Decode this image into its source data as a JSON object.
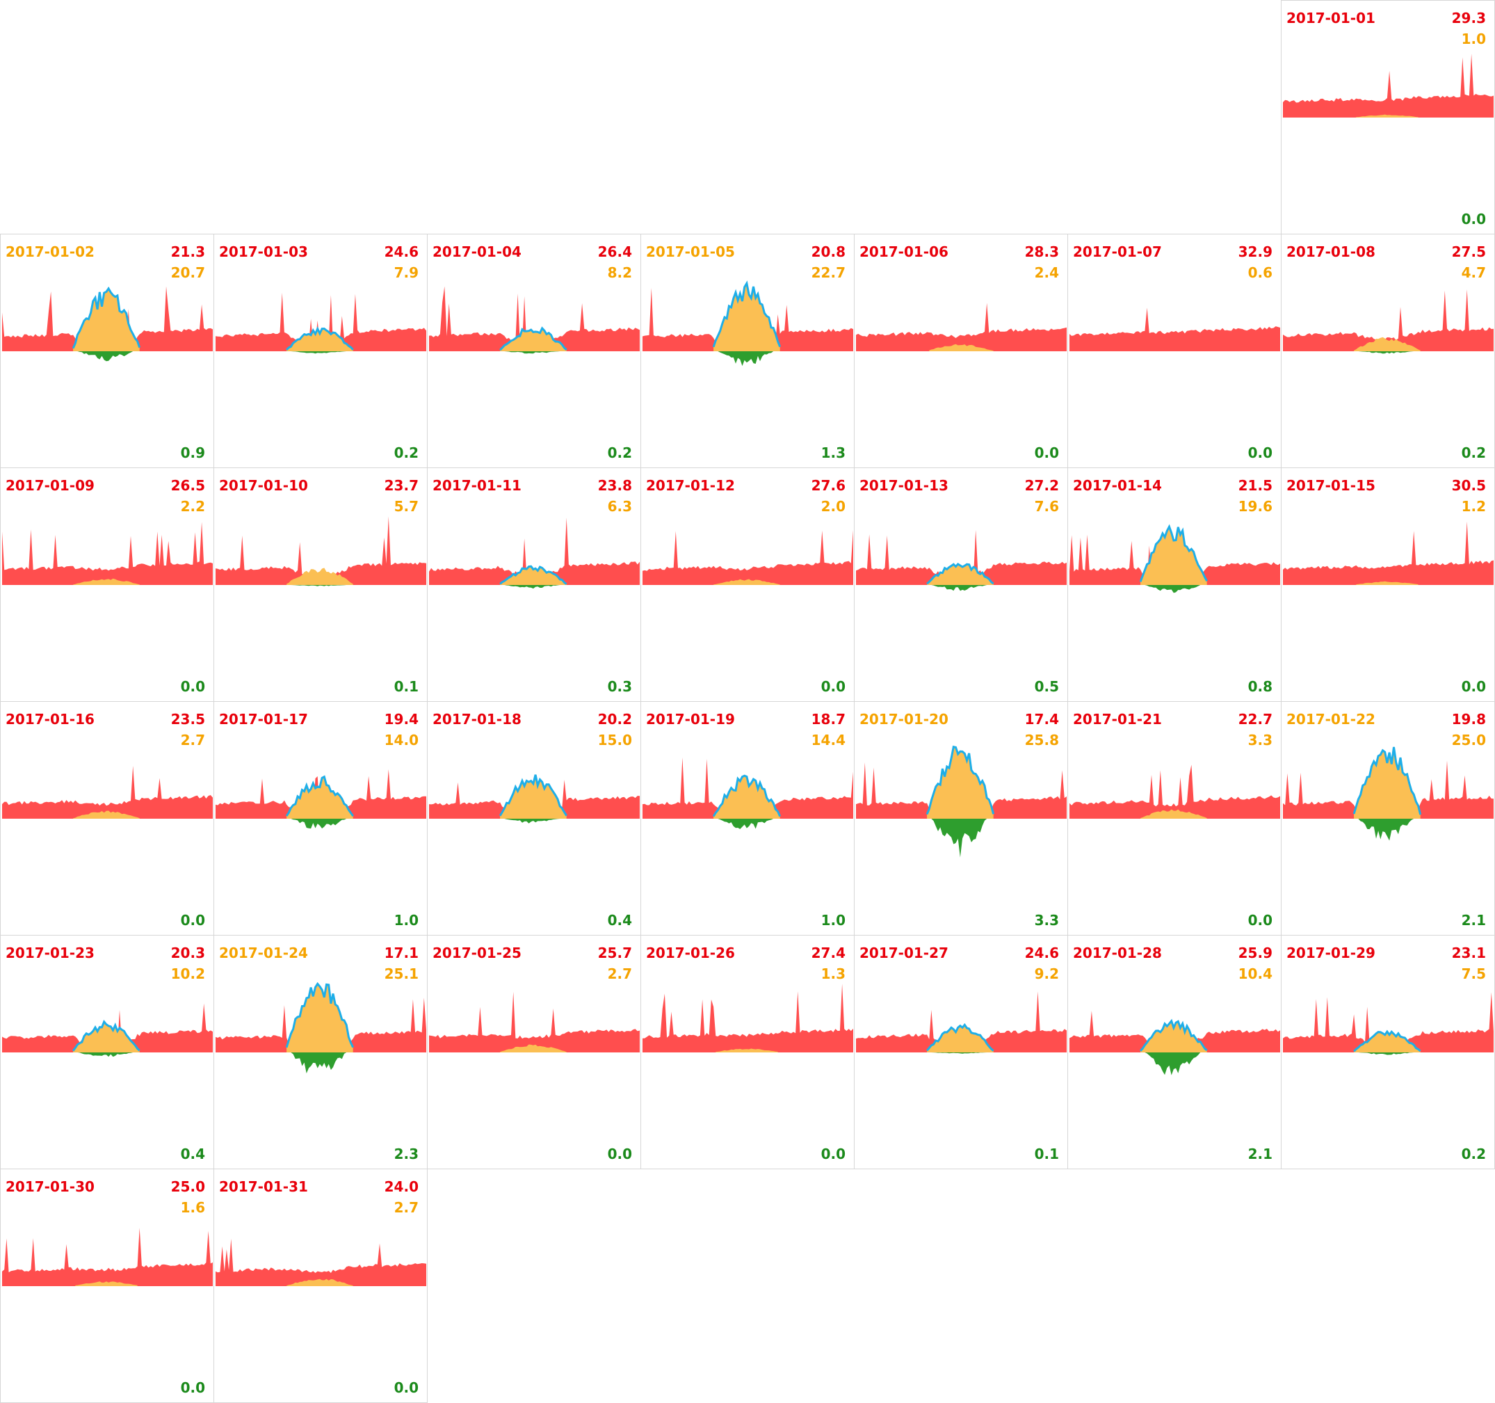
{
  "colors": {
    "grid": "#ff4e4e",
    "grid_text": "#e8000b",
    "solar": "#fbbf53",
    "solar_text": "#f5a300",
    "solar_peak": "#1eaee8",
    "export": "#2e9e2e",
    "export_text": "#1b8a1b",
    "border": "#d6d6d6"
  },
  "chart_data": {
    "type": "area",
    "layout": "calendar-small-multiples",
    "month": "2017-01",
    "first_weekday_column": 7,
    "series": [
      {
        "name": "grid",
        "color": "#ff4e4e"
      },
      {
        "name": "solar",
        "color": "#fbbf53"
      },
      {
        "name": "export",
        "color": "#2e9e2e"
      }
    ],
    "days": [
      {
        "date": "2017-01-01",
        "grid": "29.3",
        "solar": "1.0",
        "export": "0.0",
        "solar_dominant": false
      },
      {
        "date": "2017-01-02",
        "grid": "21.3",
        "solar": "20.7",
        "export": "0.9",
        "solar_dominant": true
      },
      {
        "date": "2017-01-03",
        "grid": "24.6",
        "solar": "7.9",
        "export": "0.2",
        "solar_dominant": false
      },
      {
        "date": "2017-01-04",
        "grid": "26.4",
        "solar": "8.2",
        "export": "0.2",
        "solar_dominant": false
      },
      {
        "date": "2017-01-05",
        "grid": "20.8",
        "solar": "22.7",
        "export": "1.3",
        "solar_dominant": true
      },
      {
        "date": "2017-01-06",
        "grid": "28.3",
        "solar": "2.4",
        "export": "0.0",
        "solar_dominant": false
      },
      {
        "date": "2017-01-07",
        "grid": "32.9",
        "solar": "0.6",
        "export": "0.0",
        "solar_dominant": false
      },
      {
        "date": "2017-01-08",
        "grid": "27.5",
        "solar": "4.7",
        "export": "0.2",
        "solar_dominant": false
      },
      {
        "date": "2017-01-09",
        "grid": "26.5",
        "solar": "2.2",
        "export": "0.0",
        "solar_dominant": false
      },
      {
        "date": "2017-01-10",
        "grid": "23.7",
        "solar": "5.7",
        "export": "0.1",
        "solar_dominant": false
      },
      {
        "date": "2017-01-11",
        "grid": "23.8",
        "solar": "6.3",
        "export": "0.3",
        "solar_dominant": false
      },
      {
        "date": "2017-01-12",
        "grid": "27.6",
        "solar": "2.0",
        "export": "0.0",
        "solar_dominant": false
      },
      {
        "date": "2017-01-13",
        "grid": "27.2",
        "solar": "7.6",
        "export": "0.5",
        "solar_dominant": false
      },
      {
        "date": "2017-01-14",
        "grid": "21.5",
        "solar": "19.6",
        "export": "0.8",
        "solar_dominant": false
      },
      {
        "date": "2017-01-15",
        "grid": "30.5",
        "solar": "1.2",
        "export": "0.0",
        "solar_dominant": false
      },
      {
        "date": "2017-01-16",
        "grid": "23.5",
        "solar": "2.7",
        "export": "0.0",
        "solar_dominant": false
      },
      {
        "date": "2017-01-17",
        "grid": "19.4",
        "solar": "14.0",
        "export": "1.0",
        "solar_dominant": false
      },
      {
        "date": "2017-01-18",
        "grid": "20.2",
        "solar": "15.0",
        "export": "0.4",
        "solar_dominant": false
      },
      {
        "date": "2017-01-19",
        "grid": "18.7",
        "solar": "14.4",
        "export": "1.0",
        "solar_dominant": false
      },
      {
        "date": "2017-01-20",
        "grid": "17.4",
        "solar": "25.8",
        "export": "3.3",
        "solar_dominant": true
      },
      {
        "date": "2017-01-21",
        "grid": "22.7",
        "solar": "3.3",
        "export": "0.0",
        "solar_dominant": false
      },
      {
        "date": "2017-01-22",
        "grid": "19.8",
        "solar": "25.0",
        "export": "2.1",
        "solar_dominant": true
      },
      {
        "date": "2017-01-23",
        "grid": "20.3",
        "solar": "10.2",
        "export": "0.4",
        "solar_dominant": false
      },
      {
        "date": "2017-01-24",
        "grid": "17.1",
        "solar": "25.1",
        "export": "2.3",
        "solar_dominant": true
      },
      {
        "date": "2017-01-25",
        "grid": "25.7",
        "solar": "2.7",
        "export": "0.0",
        "solar_dominant": false
      },
      {
        "date": "2017-01-26",
        "grid": "27.4",
        "solar": "1.3",
        "export": "0.0",
        "solar_dominant": false
      },
      {
        "date": "2017-01-27",
        "grid": "24.6",
        "solar": "9.2",
        "export": "0.1",
        "solar_dominant": false
      },
      {
        "date": "2017-01-28",
        "grid": "25.9",
        "solar": "10.4",
        "export": "2.1",
        "solar_dominant": false
      },
      {
        "date": "2017-01-29",
        "grid": "23.1",
        "solar": "7.5",
        "export": "0.2",
        "solar_dominant": false
      },
      {
        "date": "2017-01-30",
        "grid": "25.0",
        "solar": "1.6",
        "export": "0.0",
        "solar_dominant": false
      },
      {
        "date": "2017-01-31",
        "grid": "24.0",
        "solar": "2.7",
        "export": "0.0",
        "solar_dominant": false
      }
    ]
  }
}
